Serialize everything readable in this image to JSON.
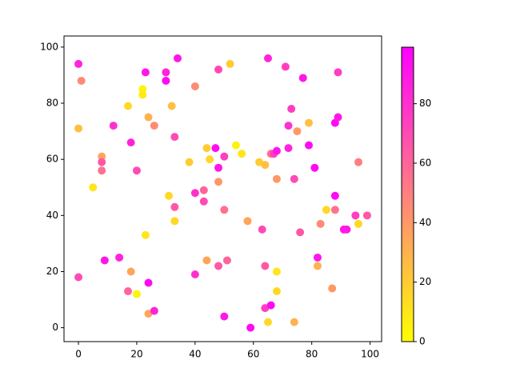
{
  "chart_data": {
    "type": "scatter",
    "x": [
      0,
      1,
      0,
      0,
      5,
      8,
      8,
      8,
      9,
      12,
      14,
      17,
      17,
      18,
      18,
      20,
      20,
      22,
      22,
      23,
      23,
      24,
      24,
      24,
      26,
      26,
      30,
      30,
      31,
      32,
      33,
      33,
      33,
      34,
      38,
      40,
      40,
      40,
      43,
      43,
      44,
      44,
      45,
      47,
      48,
      48,
      48,
      48,
      50,
      50,
      50,
      51,
      52,
      54,
      56,
      58,
      59,
      62,
      63,
      64,
      64,
      64,
      65,
      65,
      66,
      66,
      67,
      68,
      68,
      68,
      68,
      71,
      72,
      72,
      73,
      74,
      74,
      75,
      76,
      77,
      79,
      79,
      81,
      82,
      82,
      83,
      85,
      87,
      88,
      88,
      88,
      89,
      89,
      91,
      92,
      95,
      96,
      96,
      99
    ],
    "y": [
      94,
      88,
      71,
      18,
      50,
      61,
      59,
      56,
      24,
      72,
      25,
      79,
      13,
      66,
      20,
      56,
      12,
      85,
      83,
      91,
      33,
      75,
      16,
      5,
      72,
      6,
      91,
      88,
      47,
      79,
      68,
      43,
      38,
      96,
      59,
      86,
      48,
      19,
      49,
      45,
      64,
      24,
      60,
      64,
      92,
      57,
      52,
      22,
      61,
      42,
      4,
      24,
      94,
      65,
      62,
      38,
      0,
      59,
      35,
      58,
      22,
      7,
      96,
      2,
      62,
      8,
      62,
      63,
      53,
      20,
      13,
      93,
      72,
      64,
      78,
      53,
      2,
      70,
      34,
      89,
      73,
      65,
      57,
      25,
      22,
      37,
      42,
      14,
      73,
      47,
      42,
      75,
      91,
      35,
      35,
      40,
      59,
      37,
      40
    ],
    "c": [
      85,
      45,
      25,
      70,
      10,
      35,
      65,
      55,
      90,
      80,
      85,
      15,
      60,
      85,
      35,
      70,
      5,
      5,
      8,
      90,
      10,
      30,
      95,
      35,
      45,
      85,
      85,
      95,
      15,
      25,
      70,
      65,
      15,
      90,
      20,
      45,
      80,
      80,
      60,
      70,
      20,
      35,
      15,
      95,
      70,
      90,
      40,
      65,
      75,
      55,
      90,
      60,
      20,
      5,
      10,
      35,
      95,
      20,
      70,
      25,
      65,
      75,
      85,
      15,
      55,
      95,
      75,
      90,
      40,
      10,
      15,
      75,
      80,
      85,
      75,
      70,
      30,
      40,
      65,
      90,
      25,
      95,
      95,
      90,
      30,
      45,
      15,
      40,
      95,
      95,
      55,
      90,
      75,
      90,
      90,
      75,
      50,
      15,
      65
    ],
    "colormap": "spring_r",
    "clim": [
      0,
      99
    ],
    "colorbar_ticks": [
      0,
      20,
      40,
      60,
      80
    ],
    "xlim": [
      -4.95,
      103.95
    ],
    "ylim": [
      -4.95,
      103.95
    ],
    "xticks": [
      0,
      20,
      40,
      60,
      80,
      100
    ],
    "yticks": [
      0,
      20,
      40,
      60,
      80,
      100
    ]
  }
}
